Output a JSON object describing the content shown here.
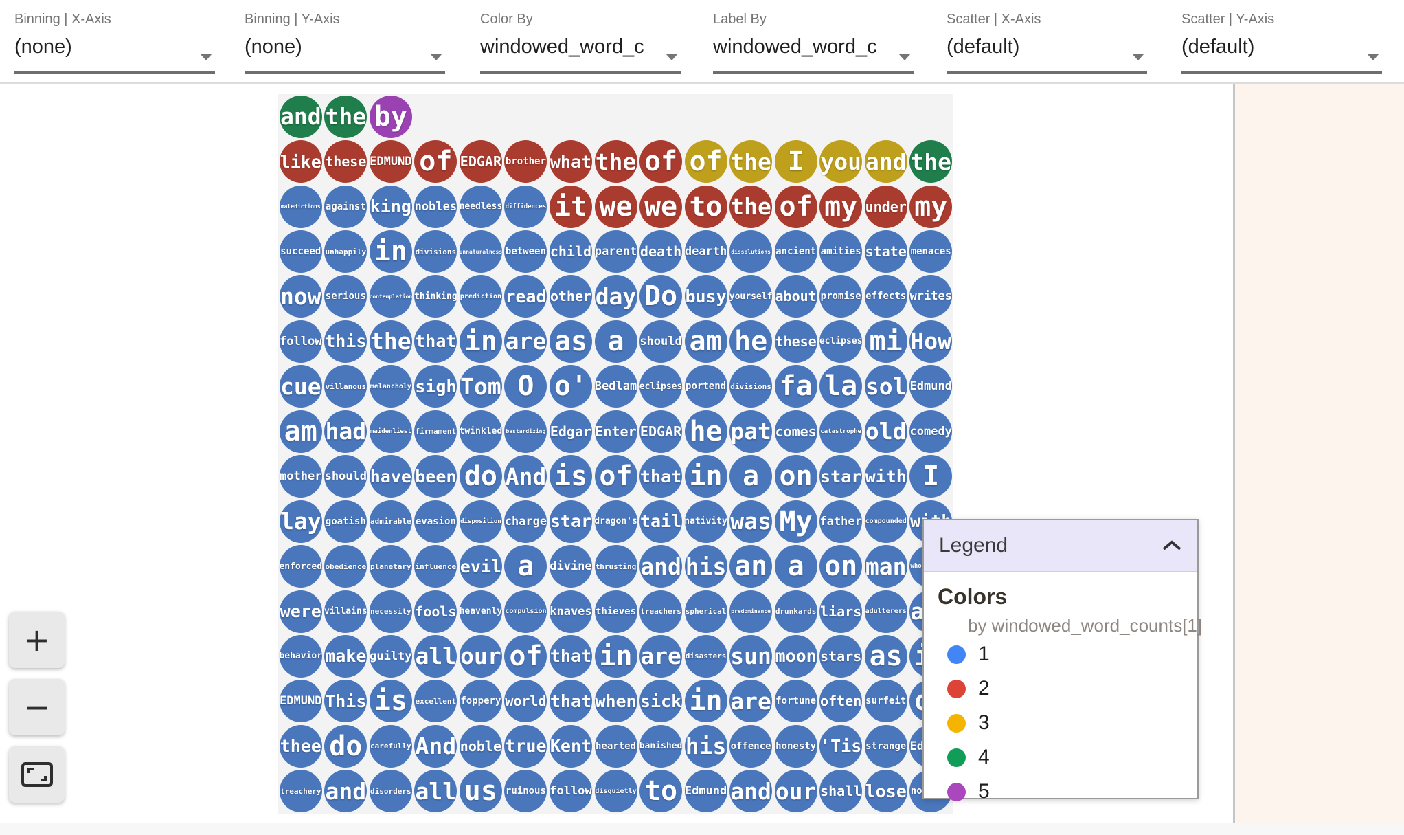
{
  "toolbar": {
    "controls": [
      {
        "label": "Binning | X-Axis",
        "value": "(none)"
      },
      {
        "label": "Binning | Y-Axis",
        "value": "(none)"
      },
      {
        "label": "Color By",
        "value": "windowed_word_c"
      },
      {
        "label": "Label By",
        "value": "windowed_word_c"
      },
      {
        "label": "Scatter | X-Axis",
        "value": "(default)"
      },
      {
        "label": "Scatter | Y-Axis",
        "value": "(default)"
      }
    ]
  },
  "zoom_controls": {
    "zoom_in": "+",
    "zoom_out": "−",
    "fit": "fit-to-frame"
  },
  "legend": {
    "title": "Legend",
    "section_title": "Colors",
    "subtitle": "by windowed_word_counts[1]",
    "items": [
      {
        "label": "1",
        "color": "#4285f4"
      },
      {
        "label": "2",
        "color": "#db4437"
      },
      {
        "label": "3",
        "color": "#f4b400"
      },
      {
        "label": "4",
        "color": "#0f9d58"
      },
      {
        "label": "5",
        "color": "#ab47bc"
      }
    ]
  },
  "grid": {
    "palette": {
      "1": "#4a77bc",
      "2": "#a93b2f",
      "3": "#bfa01d",
      "4": "#1f7e4b",
      "5": "#9a42b2"
    },
    "rows": [
      {
        "words": [
          "and",
          "the",
          "by"
        ],
        "counts": [
          4,
          4,
          5
        ]
      },
      {
        "words": [
          "like",
          "these",
          "EDMUND",
          "of",
          "EDGAR",
          "brother",
          "what",
          "the",
          "of",
          "of",
          "the",
          "I",
          "you",
          "and",
          "the"
        ],
        "counts": [
          2,
          2,
          2,
          2,
          2,
          2,
          2,
          2,
          2,
          3,
          3,
          3,
          3,
          3,
          4
        ]
      },
      {
        "words": [
          "maledictions",
          "against",
          "king",
          "nobles",
          "needless",
          "diffidences",
          "it",
          "we",
          "we",
          "to",
          "the",
          "of",
          "my",
          "under",
          "my"
        ],
        "counts": [
          1,
          1,
          1,
          1,
          1,
          1,
          2,
          2,
          2,
          2,
          2,
          2,
          2,
          2,
          2
        ]
      },
      {
        "words": [
          "succeed",
          "unhappily",
          "in",
          "divisions",
          "unnaturalness",
          "between",
          "child",
          "parent",
          "death",
          "dearth",
          "dissolutions",
          "ancient",
          "amities",
          "state",
          "menaces"
        ],
        "counts": [
          1,
          1,
          1,
          1,
          1,
          1,
          1,
          1,
          1,
          1,
          1,
          1,
          1,
          1,
          1
        ]
      },
      {
        "words": [
          "now",
          "serious",
          "contemplation",
          "thinking",
          "prediction",
          "read",
          "other",
          "day",
          "Do",
          "busy",
          "yourself",
          "about",
          "promise",
          "effects",
          "writes"
        ],
        "counts": [
          1,
          1,
          1,
          1,
          1,
          1,
          1,
          1,
          1,
          1,
          1,
          1,
          1,
          1,
          1
        ]
      },
      {
        "words": [
          "follow",
          "this",
          "the",
          "that",
          "in",
          "are",
          "as",
          "a",
          "should",
          "am",
          "he",
          "these",
          "eclipses",
          "mi",
          "How"
        ],
        "counts": [
          1,
          1,
          1,
          1,
          1,
          1,
          1,
          1,
          1,
          1,
          1,
          1,
          1,
          1,
          1
        ]
      },
      {
        "words": [
          "cue",
          "villanous",
          "melancholy",
          "sigh",
          "Tom",
          "O",
          "o'",
          "Bedlam",
          "eclipses",
          "portend",
          "divisions",
          "fa",
          "la",
          "sol",
          "Edmund"
        ],
        "counts": [
          1,
          1,
          1,
          1,
          1,
          1,
          1,
          1,
          1,
          1,
          1,
          1,
          1,
          1,
          1
        ]
      },
      {
        "words": [
          "am",
          "had",
          "maidenliest",
          "firmament",
          "twinkled",
          "bastardizing",
          "Edgar",
          "Enter",
          "EDGAR",
          "he",
          "pat",
          "comes",
          "catastrophe",
          "old",
          "comedy"
        ],
        "counts": [
          1,
          1,
          1,
          1,
          1,
          1,
          1,
          1,
          1,
          1,
          1,
          1,
          1,
          1,
          1
        ]
      },
      {
        "words": [
          "mother",
          "should",
          "have",
          "been",
          "do",
          "And",
          "is",
          "of",
          "that",
          "in",
          "a",
          "on",
          "star",
          "with",
          "I"
        ],
        "counts": [
          1,
          1,
          1,
          1,
          1,
          1,
          1,
          1,
          1,
          1,
          1,
          1,
          1,
          1,
          1
        ]
      },
      {
        "words": [
          "lay",
          "goatish",
          "admirable",
          "evasion",
          "disposition",
          "charge",
          "star",
          "dragon's",
          "tail",
          "nativity",
          "was",
          "My",
          "father",
          "compounded",
          "with"
        ],
        "counts": [
          1,
          1,
          1,
          1,
          1,
          1,
          1,
          1,
          1,
          1,
          1,
          1,
          1,
          1,
          1
        ]
      },
      {
        "words": [
          "enforced",
          "obedience",
          "planetary",
          "influence",
          "evil",
          "a",
          "divine",
          "thrusting",
          "and",
          "his",
          "an",
          "a",
          "on",
          "man",
          "whoremaster"
        ],
        "counts": [
          1,
          1,
          1,
          1,
          1,
          1,
          1,
          1,
          1,
          1,
          1,
          1,
          1,
          1,
          1
        ]
      },
      {
        "words": [
          "were",
          "villains",
          "necessity",
          "fools",
          "heavenly",
          "compulsion",
          "knaves",
          "thieves",
          "treachers",
          "spherical",
          "predominance",
          "drunkards",
          "liars",
          "adulterers",
          "and"
        ],
        "counts": [
          1,
          1,
          1,
          1,
          1,
          1,
          1,
          1,
          1,
          1,
          1,
          1,
          1,
          1,
          1
        ]
      },
      {
        "words": [
          "behavior",
          "make",
          "guilty",
          "all",
          "our",
          "of",
          "that",
          "in",
          "are",
          "disasters",
          "sun",
          "moon",
          "stars",
          "as",
          "if"
        ],
        "counts": [
          1,
          1,
          1,
          1,
          1,
          1,
          1,
          1,
          1,
          1,
          1,
          1,
          1,
          1,
          1
        ]
      },
      {
        "words": [
          "EDMUND",
          "This",
          "is",
          "excellent",
          "foppery",
          "world",
          "that",
          "when",
          "sick",
          "in",
          "are",
          "fortune",
          "often",
          "surfeit",
          "of"
        ],
        "counts": [
          1,
          1,
          1,
          1,
          1,
          1,
          1,
          1,
          1,
          1,
          1,
          1,
          1,
          1,
          1
        ]
      },
      {
        "words": [
          "thee",
          "do",
          "carefully",
          "And",
          "noble",
          "true",
          "Kent",
          "hearted",
          "banished",
          "his",
          "offence",
          "honesty",
          "'Tis",
          "strange",
          "Edmund"
        ],
        "counts": [
          1,
          1,
          1,
          1,
          1,
          1,
          1,
          1,
          1,
          1,
          1,
          1,
          1,
          1,
          1
        ]
      },
      {
        "words": [
          "treachery",
          "and",
          "disorders",
          "all",
          "us",
          "ruinous",
          "follow",
          "disquietly",
          "to",
          "Edmund",
          "and",
          "our",
          "shall",
          "lose",
          "nothing"
        ],
        "counts": [
          1,
          1,
          1,
          1,
          1,
          1,
          1,
          1,
          1,
          1,
          1,
          1,
          1,
          1,
          1
        ]
      }
    ]
  }
}
